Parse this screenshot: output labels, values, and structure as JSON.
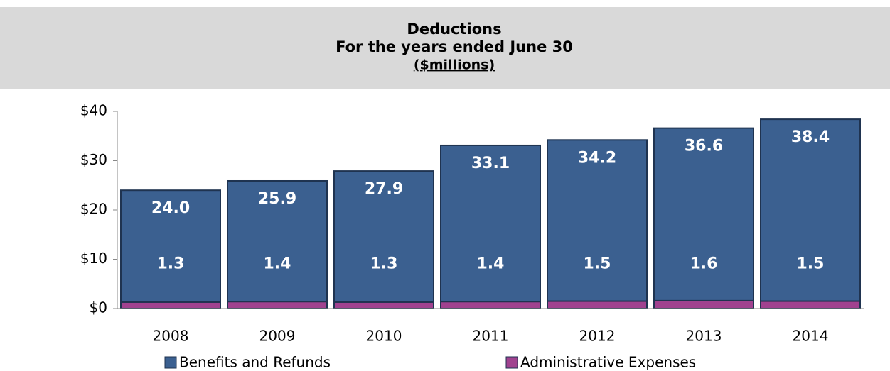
{
  "chart_data": {
    "type": "bar",
    "title": "Deductions",
    "subtitle": "For the years ended June 30",
    "unit_label": "($millions)",
    "categories": [
      "2008",
      "2009",
      "2010",
      "2011",
      "2012",
      "2013",
      "2014"
    ],
    "series": [
      {
        "name": "Benefits and Refunds",
        "color": "#3b6090",
        "values": [
          24.0,
          25.9,
          27.9,
          33.1,
          34.2,
          36.6,
          38.4
        ],
        "value_labels": [
          "24.0",
          "25.9",
          "27.9",
          "33.1",
          "34.2",
          "36.6",
          "38.4"
        ]
      },
      {
        "name": "Administrative Expenses",
        "color": "#a0428f",
        "values": [
          1.3,
          1.4,
          1.3,
          1.4,
          1.5,
          1.6,
          1.5
        ]
      }
    ],
    "ylim": [
      0,
      40
    ],
    "yticks": [
      {
        "value": 0,
        "label": "$0"
      },
      {
        "value": 10,
        "label": "$10"
      },
      {
        "value": 20,
        "label": "$20"
      },
      {
        "value": 30,
        "label": "$30"
      },
      {
        "value": 40,
        "label": "$40"
      }
    ]
  }
}
